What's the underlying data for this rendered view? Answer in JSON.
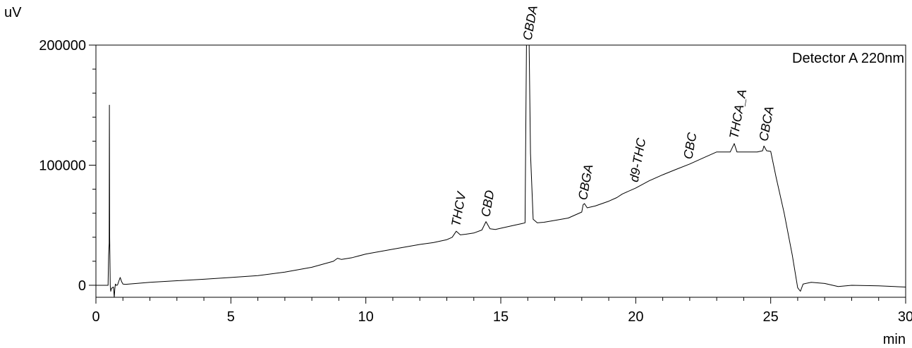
{
  "chart_data": {
    "type": "line",
    "title": "",
    "detector_label": "Detector A 220nm",
    "xlabel": "min",
    "ylabel": "uV",
    "xlim": [
      0,
      30
    ],
    "ylim": [
      -10000,
      200000
    ],
    "x_ticks": [
      0,
      5,
      10,
      15,
      20,
      25,
      30
    ],
    "x_tick_labels": [
      "0",
      "5",
      "10",
      "15",
      "20",
      "25",
      "30"
    ],
    "y_ticks": [
      0,
      100000,
      200000
    ],
    "y_tick_labels": [
      "0",
      "100000",
      "200000"
    ],
    "grid": false,
    "series": [
      {
        "x": [
          0,
          0.42,
          0.45,
          0.47,
          0.49,
          0.5,
          0.51,
          0.53,
          0.55,
          0.57,
          0.6,
          0.65,
          0.68,
          0.7,
          0.72,
          0.75,
          0.8,
          0.85,
          0.9,
          0.95,
          1.0,
          1.1,
          1.5,
          2,
          3,
          4,
          5,
          6,
          7,
          8,
          8.8,
          8.95,
          9.1,
          9.5,
          10,
          11,
          12,
          12.5,
          13,
          13.2,
          13.35,
          13.5,
          13.7,
          14,
          14.3,
          14.45,
          14.6,
          14.8,
          15,
          15.5,
          15.8,
          15.9,
          15.95,
          16.0,
          16.05,
          16.1,
          16.2,
          16.35,
          16.6,
          17,
          17.5,
          18.0,
          18.05,
          18.1,
          18.2,
          18.5,
          19,
          19.3,
          19.5,
          20,
          20.5,
          21,
          21.5,
          22,
          22.5,
          23,
          23.5,
          23.65,
          23.75,
          23.9,
          24,
          24.5,
          24.7,
          24.75,
          24.85,
          25,
          25.2,
          25.5,
          25.8,
          26.0,
          26.1,
          26.2,
          26.5,
          27,
          27.5,
          28,
          29,
          30
        ],
        "values": [
          0,
          0,
          0,
          25000,
          35000,
          150000,
          40000,
          0,
          -5000,
          -3000,
          -2000,
          -1500,
          -10000,
          -3000,
          1000,
          0,
          200,
          3500,
          6500,
          3000,
          1000,
          800,
          1500,
          2500,
          3800,
          5000,
          6500,
          8000,
          11000,
          15000,
          20000,
          22500,
          21500,
          23000,
          26000,
          30000,
          34000,
          35500,
          38000,
          40000,
          45000,
          42000,
          42500,
          43500,
          46000,
          53000,
          47000,
          46500,
          47500,
          50000,
          51500,
          52000,
          200000,
          200000,
          200000,
          110000,
          55000,
          52000,
          52500,
          54000,
          56000,
          61000,
          67000,
          68000,
          64500,
          66000,
          70000,
          73000,
          76000,
          81000,
          87000,
          92000,
          96500,
          101000,
          106000,
          111000,
          111000,
          118000,
          111000,
          111000,
          111000,
          111000,
          112000,
          116000,
          112000,
          111500,
          90000,
          60000,
          25000,
          -2000,
          -5000,
          1000,
          2500,
          1500,
          -1000,
          0,
          -500,
          -1500
        ]
      }
    ],
    "peak_labels": [
      {
        "name": "THCV",
        "x": 13.35,
        "y": 45000
      },
      {
        "name": "CBD",
        "x": 14.45,
        "y": 53000
      },
      {
        "name": "CBDA",
        "x": 16.0,
        "y": 200000
      },
      {
        "name": "CBGA",
        "x": 18.05,
        "y": 67000
      },
      {
        "name": "d9-THC",
        "x": 19.95,
        "y": 82000
      },
      {
        "name": "CBC",
        "x": 21.95,
        "y": 101000
      },
      {
        "name": "THCA_A",
        "x": 23.65,
        "y": 118000
      },
      {
        "name": "CBCA",
        "x": 24.75,
        "y": 116000
      }
    ]
  }
}
